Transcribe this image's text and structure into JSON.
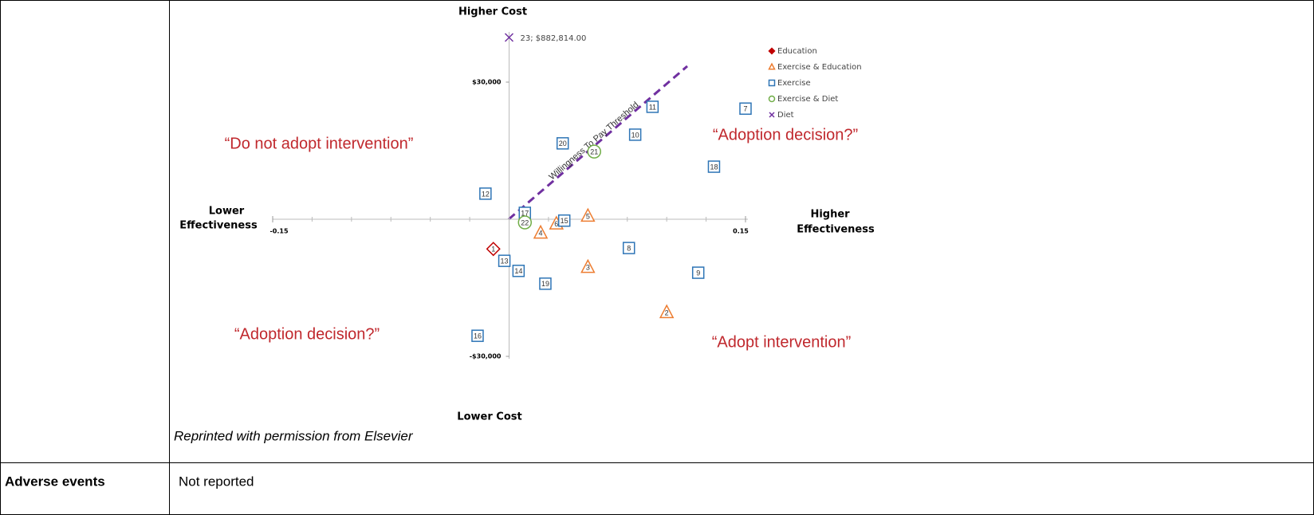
{
  "table": {
    "rows": [
      {
        "label": null,
        "caption": "Reprinted with permission from Elsevier"
      },
      {
        "label": "Adverse events",
        "text": "Not reported"
      }
    ]
  },
  "chart_data": {
    "type": "scatter",
    "y_top_label": "Higher Cost",
    "y_bottom_label": "Lower Cost",
    "x_left_label": [
      "Lower",
      "Effectiveness"
    ],
    "x_right_label": [
      "Higher",
      "Effectiveness"
    ],
    "xlim": [
      -0.15,
      0.15
    ],
    "xticks": [
      -0.15,
      0.15
    ],
    "ylim": [
      -30000,
      30000
    ],
    "yticks": [
      {
        "value": 30000,
        "label": "$30,000"
      },
      {
        "value": -30000,
        "label": "-$30,000"
      }
    ],
    "quadrant_labels": [
      "“Do not adopt intervention”",
      "“Adoption decision?”",
      "“Adoption decision?”",
      "“Adopt intervention”"
    ],
    "threshold_label": "Willingness To Pay Threshold",
    "series": [
      {
        "name": "Education",
        "color": "#c00000",
        "marker": "diamond",
        "x": [
          -0.01
        ],
        "values": [
          -6500
        ],
        "point_labels": [
          "1"
        ]
      },
      {
        "name": "Exercise & Education",
        "color": "#ed7d31",
        "marker": "triangle",
        "x": [
          0.1,
          0.05,
          0.02,
          0.05,
          0.03
        ],
        "values": [
          -20400,
          -10500,
          -3000,
          700,
          -1000
        ],
        "point_labels": [
          "2",
          "3",
          "4",
          "5",
          "6"
        ]
      },
      {
        "name": "Exercise",
        "color": "#2e75b6",
        "marker": "square",
        "x": [
          0.15,
          0.076,
          0.12,
          0.08,
          0.091,
          -0.015,
          -0.003,
          0.006,
          0.035,
          -0.02,
          0.01,
          0.13,
          0.023,
          0.034
        ],
        "values": [
          24200,
          -6300,
          -11700,
          18500,
          24600,
          5600,
          -9100,
          -11300,
          -300,
          -25500,
          1400,
          11500,
          -14100,
          16600
        ],
        "point_labels": [
          "7",
          "8",
          "9",
          "10",
          "11",
          "12",
          "13",
          "14",
          "15",
          "16",
          "17",
          "18",
          "19",
          "20"
        ]
      },
      {
        "name": "Exercise & Diet",
        "color": "#70ad47",
        "marker": "circle",
        "x": [
          0.054,
          0.01
        ],
        "values": [
          14800,
          -700
        ],
        "point_labels": [
          "21",
          "22"
        ]
      },
      {
        "name": "Diet",
        "color": "#7030a0",
        "marker": "x",
        "x": [],
        "values": [],
        "point_labels": []
      }
    ],
    "offscale_point": {
      "series": "Diet",
      "x": 0,
      "y": 882814,
      "label": "23; $882,814.00"
    }
  }
}
